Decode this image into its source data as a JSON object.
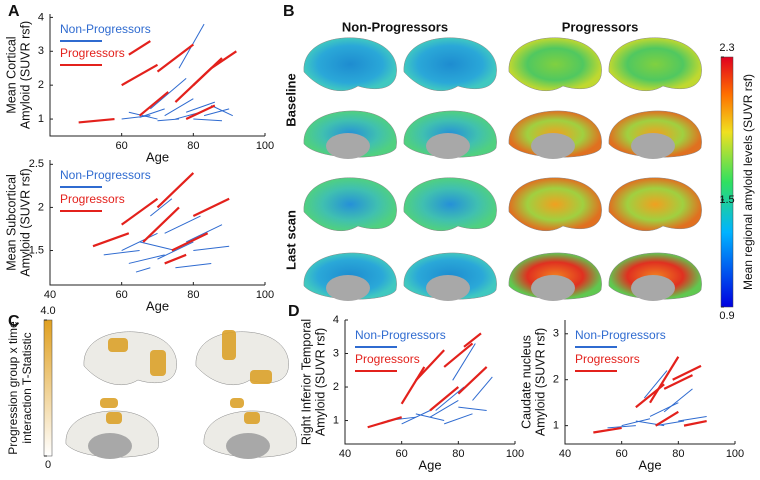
{
  "chart_data": [
    {
      "type": "line",
      "panel": "A",
      "ylabel": [
        "Mean Cortical",
        "Amyloid (SUVR rsf)"
      ],
      "xlabel": "Age",
      "xlim": [
        40,
        100
      ],
      "xticks": [
        60,
        80,
        100
      ],
      "ylim": [
        0.5,
        4.1
      ],
      "yticks": [
        1,
        2,
        3,
        4
      ],
      "legend": "upper left",
      "series": [
        {
          "name": "Non-Progressors",
          "color": "#2f6bd0",
          "trajectories": [
            {
              "x": [
                60,
                68
              ],
              "values": [
                1.0,
                1.1
              ]
            },
            {
              "x": [
                65,
                72
              ],
              "values": [
                1.05,
                1.3
              ]
            },
            {
              "x": [
                70,
                76
              ],
              "values": [
                0.95,
                1.0
              ]
            },
            {
              "x": [
                72,
                80
              ],
              "values": [
                1.1,
                1.6
              ]
            },
            {
              "x": [
                75,
                82
              ],
              "values": [
                1.0,
                1.2
              ]
            },
            {
              "x": [
                78,
                86
              ],
              "values": [
                1.2,
                1.5
              ]
            },
            {
              "x": [
                80,
                88
              ],
              "values": [
                1.0,
                0.95
              ]
            },
            {
              "x": [
                68,
                78
              ],
              "values": [
                1.3,
                2.2
              ]
            },
            {
              "x": [
                83,
                90
              ],
              "values": [
                1.1,
                1.3
              ]
            },
            {
              "x": [
                62,
                70
              ],
              "values": [
                1.2,
                1.0
              ]
            },
            {
              "x": [
                76,
                83
              ],
              "values": [
                2.5,
                3.8
              ]
            },
            {
              "x": [
                85,
                91
              ],
              "values": [
                1.4,
                1.1
              ]
            }
          ]
        },
        {
          "name": "Progressors",
          "color": "#e3211c",
          "trajectories": [
            {
              "x": [
                48,
                58
              ],
              "values": [
                0.9,
                1.0
              ]
            },
            {
              "x": [
                60,
                70
              ],
              "values": [
                2.0,
                2.6
              ]
            },
            {
              "x": [
                65,
                73
              ],
              "values": [
                1.1,
                1.8
              ]
            },
            {
              "x": [
                70,
                80
              ],
              "values": [
                2.4,
                3.2
              ]
            },
            {
              "x": [
                75,
                85
              ],
              "values": [
                1.5,
                2.5
              ]
            },
            {
              "x": [
                80,
                88
              ],
              "values": [
                2.0,
                2.8
              ]
            },
            {
              "x": [
                62,
                68
              ],
              "values": [
                2.9,
                3.3
              ]
            },
            {
              "x": [
                78,
                86
              ],
              "values": [
                1.0,
                1.4
              ]
            },
            {
              "x": [
                85,
                92
              ],
              "values": [
                2.5,
                3.0
              ]
            }
          ]
        }
      ]
    },
    {
      "type": "line",
      "ylabel": [
        "Mean Subcortical",
        "Amyloid (SUVR rsf)"
      ],
      "xlabel": "Age",
      "xlim": [
        40,
        100
      ],
      "xticks": [
        40,
        60,
        80,
        100
      ],
      "ylim": [
        1.1,
        2.55
      ],
      "yticks": [
        1.5,
        2,
        2.5
      ],
      "legend": "upper left",
      "series": [
        {
          "name": "Non-Progressors",
          "color": "#2f6bd0",
          "trajectories": [
            {
              "x": [
                55,
                65
              ],
              "values": [
                1.45,
                1.5
              ]
            },
            {
              "x": [
                60,
                70
              ],
              "values": [
                1.5,
                1.7
              ]
            },
            {
              "x": [
                62,
                72
              ],
              "values": [
                1.35,
                1.45
              ]
            },
            {
              "x": [
                65,
                75
              ],
              "values": [
                1.6,
                1.5
              ]
            },
            {
              "x": [
                70,
                80
              ],
              "values": [
                1.4,
                1.6
              ]
            },
            {
              "x": [
                72,
                82
              ],
              "values": [
                1.7,
                1.9
              ]
            },
            {
              "x": [
                75,
                85
              ],
              "values": [
                1.3,
                1.35
              ]
            },
            {
              "x": [
                80,
                90
              ],
              "values": [
                1.5,
                1.55
              ]
            },
            {
              "x": [
                68,
                74
              ],
              "values": [
                1.9,
                2.1
              ]
            },
            {
              "x": [
                78,
                88
              ],
              "values": [
                1.6,
                1.8
              ]
            },
            {
              "x": [
                64,
                68
              ],
              "values": [
                1.25,
                1.3
              ]
            }
          ]
        },
        {
          "name": "Progressors",
          "color": "#e3211c",
          "trajectories": [
            {
              "x": [
                52,
                62
              ],
              "values": [
                1.55,
                1.7
              ]
            },
            {
              "x": [
                60,
                70
              ],
              "values": [
                1.8,
                2.1
              ]
            },
            {
              "x": [
                66,
                76
              ],
              "values": [
                1.6,
                2.0
              ]
            },
            {
              "x": [
                70,
                80
              ],
              "values": [
                2.0,
                2.4
              ]
            },
            {
              "x": [
                74,
                84
              ],
              "values": [
                1.5,
                1.7
              ]
            },
            {
              "x": [
                80,
                90
              ],
              "values": [
                1.9,
                2.1
              ]
            },
            {
              "x": [
                72,
                78
              ],
              "values": [
                1.35,
                1.45
              ]
            }
          ]
        }
      ]
    },
    {
      "type": "brain-map",
      "panel": "B",
      "columns": [
        "Non-Progressors",
        "Progressors"
      ],
      "rows": [
        "Baseline",
        "Last scan"
      ],
      "colorbar_label": "Mean regional amyloid levels (SUVR rsf)",
      "clim": [
        0.9,
        2.3
      ],
      "cticks": [
        0.9,
        1.5,
        2.3
      ]
    },
    {
      "type": "brain-map",
      "panel": "C",
      "colorbar_label": [
        "Progression group x time",
        "interaction T-Statistic"
      ],
      "clim": [
        0,
        4
      ],
      "cticks": [
        0,
        {
          "value": 4,
          "label": "4.0"
        }
      ]
    },
    {
      "type": "line",
      "panel": "D",
      "ylabel": [
        "Right Inferior Temporal",
        "Amyloid (SUVR rsf)"
      ],
      "xlabel": "Age",
      "xlim": [
        40,
        100
      ],
      "xticks": [
        40,
        60,
        80,
        100
      ],
      "ylim": [
        0.3,
        4
      ],
      "yticks": [
        1,
        2,
        3,
        4
      ],
      "legend": "upper left",
      "series": [
        {
          "name": "Non-Progressors",
          "color": "#2f6bd0",
          "trajectories": [
            {
              "x": [
                55,
                65
              ],
              "values": [
                1.0,
                1.1
              ]
            },
            {
              "x": [
                60,
                70
              ],
              "values": [
                0.9,
                1.3
              ]
            },
            {
              "x": [
                65,
                75
              ],
              "values": [
                1.2,
                1.0
              ]
            },
            {
              "x": [
                70,
                80
              ],
              "values": [
                1.1,
                1.6
              ]
            },
            {
              "x": [
                72,
                82
              ],
              "values": [
                1.3,
                2.0
              ]
            },
            {
              "x": [
                75,
                85
              ],
              "values": [
                0.9,
                1.2
              ]
            },
            {
              "x": [
                80,
                90
              ],
              "values": [
                1.4,
                1.3
              ]
            },
            {
              "x": [
                78,
                86
              ],
              "values": [
                2.2,
                3.3
              ]
            },
            {
              "x": [
                85,
                92
              ],
              "values": [
                1.6,
                2.3
              ]
            }
          ]
        },
        {
          "name": "Progressors",
          "color": "#e3211c",
          "trajectories": [
            {
              "x": [
                48,
                60
              ],
              "values": [
                0.8,
                1.1
              ]
            },
            {
              "x": [
                60,
                68
              ],
              "values": [
                1.5,
                2.6
              ]
            },
            {
              "x": [
                65,
                75
              ],
              "values": [
                2.2,
                3.1
              ]
            },
            {
              "x": [
                70,
                80
              ],
              "values": [
                1.3,
                2.0
              ]
            },
            {
              "x": [
                75,
                85
              ],
              "values": [
                2.6,
                3.3
              ]
            },
            {
              "x": [
                80,
                90
              ],
              "values": [
                1.8,
                2.6
              ]
            },
            {
              "x": [
                82,
                88
              ],
              "values": [
                3.2,
                3.6
              ]
            }
          ]
        }
      ]
    },
    {
      "type": "line",
      "ylabel": [
        "Caudate nucleus",
        "Amyloid (SUVR rsf)"
      ],
      "xlabel": "Age",
      "xlim": [
        40,
        100
      ],
      "xticks": [
        40,
        60,
        80,
        100
      ],
      "ylim": [
        0.6,
        3.3
      ],
      "yticks": [
        1,
        2,
        3
      ],
      "legend": "upper left",
      "series": [
        {
          "name": "Non-Progressors",
          "color": "#2f6bd0",
          "trajectories": [
            {
              "x": [
                55,
                65
              ],
              "values": [
                0.95,
                1.0
              ]
            },
            {
              "x": [
                60,
                70
              ],
              "values": [
                1.0,
                1.15
              ]
            },
            {
              "x": [
                65,
                75
              ],
              "values": [
                1.1,
                1.0
              ]
            },
            {
              "x": [
                70,
                80
              ],
              "values": [
                1.2,
                1.5
              ]
            },
            {
              "x": [
                72,
                82
              ],
              "values": [
                1.0,
                1.1
              ]
            },
            {
              "x": [
                75,
                85
              ],
              "values": [
                1.3,
                1.8
              ]
            },
            {
              "x": [
                80,
                90
              ],
              "values": [
                1.1,
                1.2
              ]
            },
            {
              "x": [
                68,
                76
              ],
              "values": [
                1.6,
                2.2
              ]
            }
          ]
        },
        {
          "name": "Progressors",
          "color": "#e3211c",
          "trajectories": [
            {
              "x": [
                50,
                60
              ],
              "values": [
                0.85,
                0.95
              ]
            },
            {
              "x": [
                65,
                75
              ],
              "values": [
                1.4,
                1.9
              ]
            },
            {
              "x": [
                70,
                80
              ],
              "values": [
                1.5,
                2.5
              ]
            },
            {
              "x": [
                75,
                85
              ],
              "values": [
                1.8,
                2.1
              ]
            },
            {
              "x": [
                78,
                88
              ],
              "values": [
                2.0,
                2.3
              ]
            },
            {
              "x": [
                82,
                90
              ],
              "values": [
                1.0,
                1.1
              ]
            },
            {
              "x": [
                72,
                80
              ],
              "values": [
                1.0,
                1.3
              ]
            }
          ]
        }
      ]
    }
  ]
}
